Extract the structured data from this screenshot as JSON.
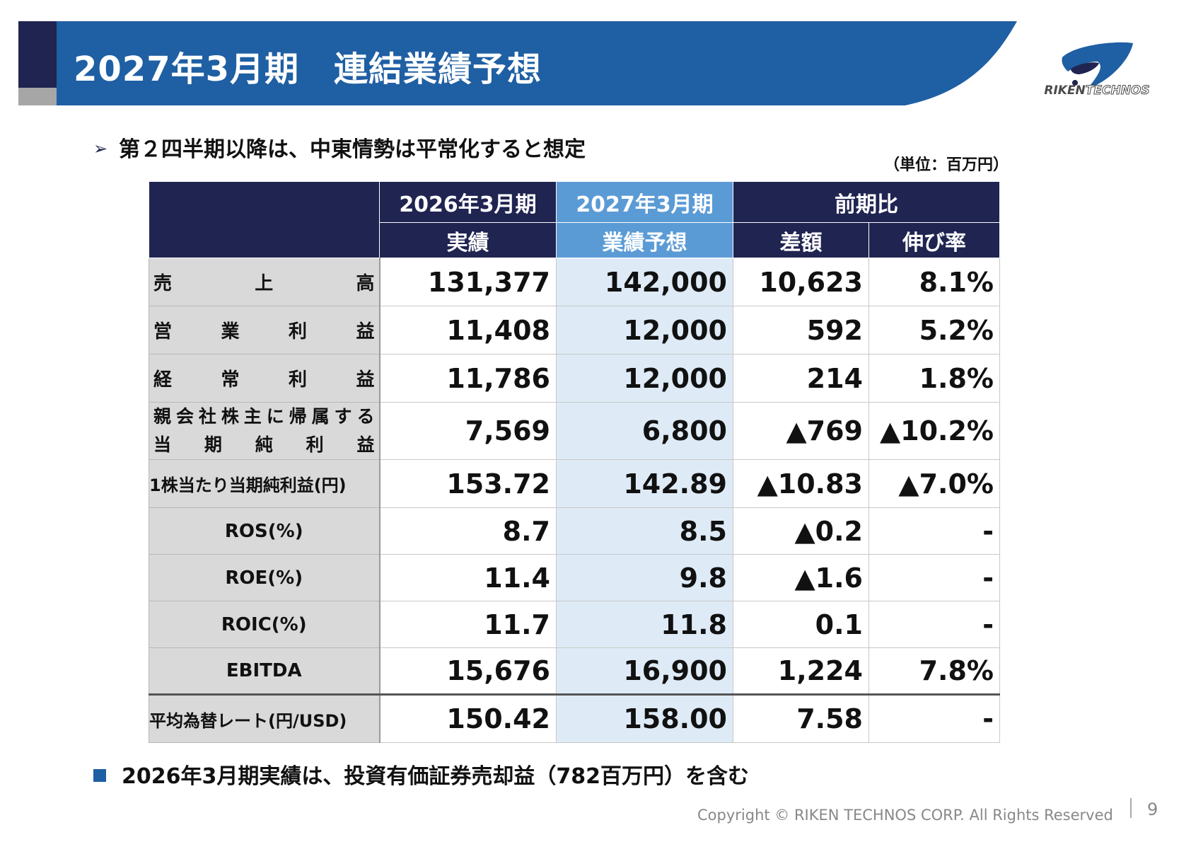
{
  "header": {
    "title": "2027年3月期　連結業績予想",
    "logo_text_part1": "RIKEN",
    "logo_text_part2": "TECHNOS"
  },
  "bullet_top": "第２四半期以降は、中東情勢は平常化すると想定",
  "unit_note": "（単位：百万円）",
  "table": {
    "headers": {
      "col1_line1": "2026年3月期",
      "col1_line2": "実績",
      "col2_line1": "2027年3月期",
      "col2_line2": "業績予想",
      "col3": "前期比",
      "col3a": "差額",
      "col3b": "伸び率"
    },
    "rows": [
      {
        "label_chars": [
          "売",
          "上",
          "高"
        ],
        "actual": "131,377",
        "forecast": "142,000",
        "diff": "10,623",
        "rate": "8.1%"
      },
      {
        "label_chars": [
          "営",
          "業",
          "利",
          "益"
        ],
        "actual": "11,408",
        "forecast": "12,000",
        "diff": "592",
        "rate": "5.2%"
      },
      {
        "label_chars": [
          "経",
          "常",
          "利",
          "益"
        ],
        "actual": "11,786",
        "forecast": "12,000",
        "diff": "214",
        "rate": "1.8%"
      },
      {
        "label_line1_chars": [
          "親",
          "会",
          "社",
          "株",
          "主",
          "に",
          "帰",
          "属",
          "す",
          "る"
        ],
        "label_line2_chars": [
          "当",
          "期",
          "純",
          "利",
          "益"
        ],
        "actual": "7,569",
        "forecast": "6,800",
        "diff": "▲769",
        "rate": "▲10.2%"
      },
      {
        "label": "1株当たり当期純利益(円)",
        "actual": "153.72",
        "forecast": "142.89",
        "diff": "▲10.83",
        "rate": "▲7.0%"
      },
      {
        "label": "ROS(%)",
        "actual": "8.7",
        "forecast": "8.5",
        "diff": "▲0.2",
        "rate": "-"
      },
      {
        "label": "ROE(%)",
        "actual": "11.4",
        "forecast": "9.8",
        "diff": "▲1.6",
        "rate": "-"
      },
      {
        "label": "ROIC(%)",
        "actual": "11.7",
        "forecast": "11.8",
        "diff": "0.1",
        "rate": "-"
      },
      {
        "label": "EBITDA",
        "actual": "15,676",
        "forecast": "16,900",
        "diff": "1,224",
        "rate": "7.8%"
      },
      {
        "label": "平均為替レート(円/USD)",
        "actual": "150.42",
        "forecast": "158.00",
        "diff": "7.58",
        "rate": "-"
      }
    ]
  },
  "bullet_bottom": "2026年3月期実績は、投資有価証券売却益（782百万円）を含む",
  "footer": {
    "copyright": "Copyright © RIKEN TECHNOS CORP. All Rights Reserved",
    "page_number": "9"
  },
  "colors": {
    "navy": "#1f2451",
    "header_blue": "#1f5fa3",
    "forecast_header": "#5b9bd5",
    "forecast_cell": "#deebf7",
    "label_gray": "#d9d9d9"
  }
}
